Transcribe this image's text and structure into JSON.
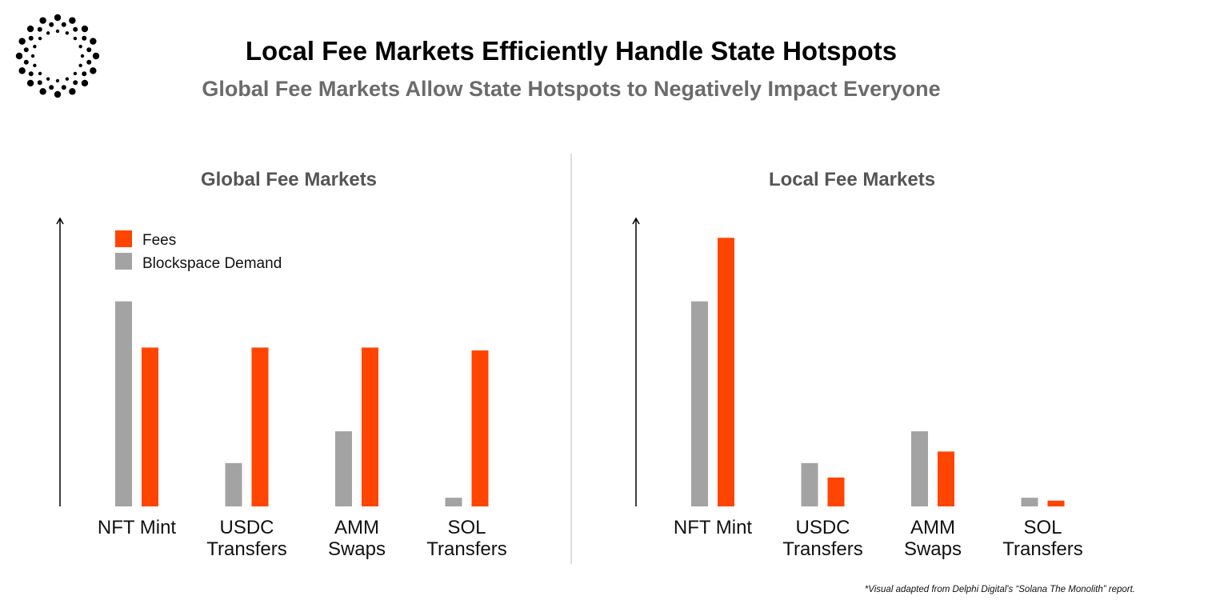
{
  "title": "Local Fee Markets Efficiently Handle State Hotspots",
  "subtitle": "Global Fee Markets Allow State Hotspots to Negatively Impact Everyone",
  "footnote": "*Visual adapted from Delphi Digital's “Solana The Monolith” report.",
  "logo": "dotted-circle-logo",
  "colors": {
    "fees": "#ff4500",
    "demand": "#a3a3a3"
  },
  "chart_data": [
    {
      "type": "bar",
      "title": "Global Fee Markets",
      "categories": [
        [
          "NFT Mint"
        ],
        [
          "USDC",
          "Transfers"
        ],
        [
          "AMM",
          "Swaps"
        ],
        [
          "SOL",
          "Transfers"
        ]
      ],
      "series": [
        {
          "name": "Blockspace Demand",
          "values": [
            71,
            15,
            26,
            3
          ]
        },
        {
          "name": "Fees",
          "values": [
            55,
            55,
            55,
            54
          ]
        }
      ],
      "legend": {
        "position": "top-left",
        "entries": [
          "Fees",
          "Blockspace Demand"
        ]
      },
      "ylim": [
        0,
        100
      ],
      "axis_ticks": false,
      "grid": false
    },
    {
      "type": "bar",
      "title": "Local Fee Markets",
      "categories": [
        [
          "NFT Mint"
        ],
        [
          "USDC",
          "Transfers"
        ],
        [
          "AMM",
          "Swaps"
        ],
        [
          "SOL",
          "Transfers"
        ]
      ],
      "series": [
        {
          "name": "Blockspace Demand",
          "values": [
            71,
            15,
            26,
            3
          ]
        },
        {
          "name": "Fees",
          "values": [
            93,
            10,
            19,
            2
          ]
        }
      ],
      "ylim": [
        0,
        100
      ],
      "axis_ticks": false,
      "grid": false
    }
  ]
}
